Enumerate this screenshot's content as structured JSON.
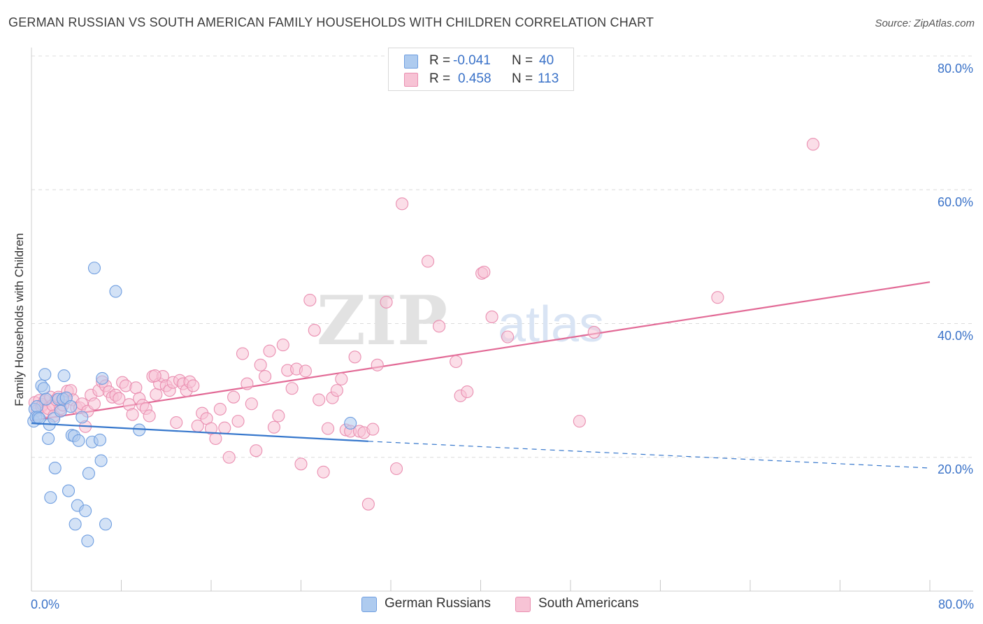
{
  "header": {
    "title": "GERMAN RUSSIAN VS SOUTH AMERICAN FAMILY HOUSEHOLDS WITH CHILDREN CORRELATION CHART",
    "source": "Source: ZipAtlas.com"
  },
  "legend": {
    "r_label": "R =",
    "n_label": "N =",
    "series": [
      {
        "r": "-0.041",
        "n": "40"
      },
      {
        "r": "0.458",
        "n": "113"
      }
    ]
  },
  "watermark": {
    "zip": "ZIP",
    "atlas": "atlas"
  },
  "colors": {
    "blue_fill": "#aecbef",
    "blue_stroke": "#6f9ee0",
    "blue_line": "#3677cc",
    "pink_fill": "#f7c3d5",
    "pink_stroke": "#ea8fb1",
    "pink_line": "#e26a96",
    "tick_label": "#3a72c8",
    "grid": "#dcdcdc"
  },
  "chart_data": {
    "type": "scatter",
    "title": "GERMAN RUSSIAN VS SOUTH AMERICAN FAMILY HOUSEHOLDS WITH CHILDREN CORRELATION CHART",
    "xlabel": "",
    "ylabel": "Family Households with Children",
    "xlim": [
      0,
      80
    ],
    "ylim": [
      0,
      80
    ],
    "x_tick_labels": [
      "0.0%",
      "80.0%"
    ],
    "y_ticks": [
      20,
      40,
      60,
      80
    ],
    "y_tick_labels": [
      "20.0%",
      "40.0%",
      "60.0%",
      "80.0%"
    ],
    "grid": true,
    "series": [
      {
        "name": "German Russians",
        "color": "blue",
        "r": -0.041,
        "n": 40,
        "trend": {
          "x0": 0,
          "y0": 25.1,
          "x1": 30,
          "y1": 22.4,
          "dash_to_x": 80,
          "dash_to_y": 18.4
        },
        "points": [
          [
            0.2,
            25.4
          ],
          [
            0.3,
            27.2
          ],
          [
            0.4,
            26.0
          ],
          [
            0.5,
            27.6
          ],
          [
            0.6,
            26.0
          ],
          [
            0.7,
            25.8
          ],
          [
            0.9,
            30.7
          ],
          [
            1.1,
            30.3
          ],
          [
            1.2,
            32.4
          ],
          [
            1.3,
            28.7
          ],
          [
            1.5,
            22.8
          ],
          [
            1.6,
            24.9
          ],
          [
            1.7,
            14.0
          ],
          [
            2.0,
            25.8
          ],
          [
            2.1,
            18.4
          ],
          [
            2.4,
            28.7
          ],
          [
            2.6,
            26.9
          ],
          [
            2.8,
            28.7
          ],
          [
            2.9,
            32.2
          ],
          [
            3.1,
            28.9
          ],
          [
            3.3,
            15.0
          ],
          [
            3.5,
            27.6
          ],
          [
            3.6,
            23.3
          ],
          [
            3.8,
            23.2
          ],
          [
            3.9,
            10.0
          ],
          [
            4.1,
            12.8
          ],
          [
            4.2,
            22.5
          ],
          [
            4.5,
            26.0
          ],
          [
            4.8,
            12.0
          ],
          [
            5.0,
            7.5
          ],
          [
            5.1,
            17.6
          ],
          [
            5.4,
            22.3
          ],
          [
            5.6,
            48.3
          ],
          [
            6.1,
            22.6
          ],
          [
            6.2,
            19.5
          ],
          [
            6.3,
            31.8
          ],
          [
            6.6,
            10.0
          ],
          [
            7.5,
            44.8
          ],
          [
            9.6,
            24.1
          ],
          [
            28.4,
            25.1
          ]
        ]
      },
      {
        "name": "South Americans",
        "color": "pink",
        "r": 0.458,
        "n": 113,
        "trend": {
          "x0": 0,
          "y0": 25.5,
          "x1": 80,
          "y1": 46.2
        },
        "points": [
          [
            0.3,
            28.2
          ],
          [
            0.5,
            27.0
          ],
          [
            0.7,
            28.5
          ],
          [
            0.9,
            27.6
          ],
          [
            1.0,
            27.9
          ],
          [
            1.2,
            28.5
          ],
          [
            1.3,
            26.9
          ],
          [
            1.5,
            27.3
          ],
          [
            1.7,
            29.0
          ],
          [
            1.9,
            27.8
          ],
          [
            2.0,
            26.2
          ],
          [
            2.2,
            28.6
          ],
          [
            2.4,
            29.0
          ],
          [
            2.6,
            27.3
          ],
          [
            2.8,
            27.8
          ],
          [
            3.0,
            28.8
          ],
          [
            3.2,
            29.9
          ],
          [
            3.5,
            30.0
          ],
          [
            3.7,
            28.6
          ],
          [
            4.0,
            27.4
          ],
          [
            4.3,
            27.4
          ],
          [
            4.5,
            28.0
          ],
          [
            4.8,
            24.6
          ],
          [
            5.0,
            26.9
          ],
          [
            5.3,
            29.3
          ],
          [
            5.6,
            28.0
          ],
          [
            6.0,
            30.0
          ],
          [
            6.3,
            31.3
          ],
          [
            6.6,
            30.7
          ],
          [
            6.9,
            29.8
          ],
          [
            7.2,
            29.0
          ],
          [
            7.5,
            29.3
          ],
          [
            7.8,
            28.8
          ],
          [
            8.1,
            31.2
          ],
          [
            8.4,
            30.7
          ],
          [
            8.7,
            27.9
          ],
          [
            9.0,
            26.4
          ],
          [
            9.3,
            30.4
          ],
          [
            9.6,
            28.8
          ],
          [
            9.9,
            27.8
          ],
          [
            10.2,
            27.3
          ],
          [
            10.5,
            26.2
          ],
          [
            10.8,
            32.1
          ],
          [
            11.1,
            29.4
          ],
          [
            11.4,
            31.0
          ],
          [
            11.7,
            32.1
          ],
          [
            12.0,
            30.7
          ],
          [
            12.3,
            30.0
          ],
          [
            12.6,
            31.2
          ],
          [
            12.9,
            25.2
          ],
          [
            13.2,
            31.5
          ],
          [
            13.5,
            31.0
          ],
          [
            13.8,
            30.0
          ],
          [
            14.1,
            31.3
          ],
          [
            14.4,
            30.7
          ],
          [
            14.8,
            24.7
          ],
          [
            15.2,
            26.6
          ],
          [
            15.6,
            25.8
          ],
          [
            16.0,
            24.3
          ],
          [
            16.4,
            22.8
          ],
          [
            16.8,
            27.2
          ],
          [
            17.2,
            24.4
          ],
          [
            17.6,
            20.0
          ],
          [
            18.0,
            29.0
          ],
          [
            18.4,
            25.4
          ],
          [
            18.8,
            35.5
          ],
          [
            19.2,
            31.0
          ],
          [
            19.6,
            28.0
          ],
          [
            20.0,
            21.0
          ],
          [
            20.4,
            33.8
          ],
          [
            20.8,
            32.1
          ],
          [
            21.2,
            35.9
          ],
          [
            21.6,
            24.5
          ],
          [
            22.0,
            26.2
          ],
          [
            22.4,
            36.8
          ],
          [
            22.8,
            33.0
          ],
          [
            23.2,
            30.3
          ],
          [
            23.6,
            33.2
          ],
          [
            24.0,
            19.0
          ],
          [
            24.4,
            32.9
          ],
          [
            24.8,
            43.5
          ],
          [
            25.2,
            39.0
          ],
          [
            25.6,
            28.6
          ],
          [
            26.0,
            17.8
          ],
          [
            26.4,
            24.3
          ],
          [
            26.8,
            28.9
          ],
          [
            27.2,
            30.0
          ],
          [
            27.6,
            31.7
          ],
          [
            28.0,
            24.1
          ],
          [
            28.4,
            23.9
          ],
          [
            28.8,
            35.0
          ],
          [
            29.2,
            23.9
          ],
          [
            29.6,
            23.7
          ],
          [
            30.0,
            13.0
          ],
          [
            30.4,
            24.2
          ],
          [
            30.8,
            33.8
          ],
          [
            31.6,
            43.2
          ],
          [
            32.5,
            18.3
          ],
          [
            33.0,
            57.9
          ],
          [
            35.3,
            49.3
          ],
          [
            36.3,
            39.6
          ],
          [
            37.8,
            34.3
          ],
          [
            38.2,
            29.2
          ],
          [
            38.8,
            29.8
          ],
          [
            40.1,
            47.5
          ],
          [
            40.3,
            47.7
          ],
          [
            41.0,
            41.0
          ],
          [
            42.4,
            38.0
          ],
          [
            48.8,
            25.4
          ],
          [
            50.1,
            38.7
          ],
          [
            61.1,
            43.9
          ],
          [
            69.6,
            66.8
          ],
          [
            11.0,
            32.2
          ]
        ]
      }
    ]
  },
  "axes": {
    "y_label": "Family Households with Children",
    "x_min_label": "0.0%",
    "x_max_label": "80.0%"
  }
}
